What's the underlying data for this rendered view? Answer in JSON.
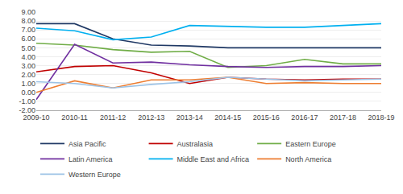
{
  "chart_data": {
    "type": "line",
    "categories": [
      "2009-10",
      "2010-11",
      "2011-12",
      "2012-13",
      "2013-14",
      "2014-15",
      "2015-16",
      "2016-17",
      "2017-18",
      "2018-19"
    ],
    "series": [
      {
        "name": "Asia Pacific",
        "color": "#1f3864",
        "values": [
          7.7,
          7.7,
          6.0,
          5.3,
          5.2,
          5.0,
          5.0,
          5.0,
          5.0,
          5.0
        ]
      },
      {
        "name": "Australasia",
        "color": "#c00000",
        "values": [
          2.3,
          2.9,
          3.0,
          2.2,
          1.0,
          1.7,
          1.5,
          1.4,
          1.5,
          1.5
        ]
      },
      {
        "name": "Eastern Europe",
        "color": "#70ad47",
        "values": [
          5.5,
          5.3,
          4.8,
          4.5,
          4.6,
          2.8,
          3.0,
          3.7,
          3.2,
          3.2
        ]
      },
      {
        "name": "Latin America",
        "color": "#7030a0",
        "values": [
          -0.8,
          5.4,
          3.3,
          3.4,
          3.1,
          2.9,
          2.8,
          2.9,
          2.9,
          3.0
        ]
      },
      {
        "name": "Middle East and Africa",
        "color": "#00b0f0",
        "values": [
          7.2,
          6.9,
          5.9,
          6.2,
          7.5,
          7.4,
          7.3,
          7.3,
          7.5,
          7.7
        ]
      },
      {
        "name": "North America",
        "color": "#ed7d31",
        "values": [
          0.0,
          1.3,
          0.5,
          1.4,
          1.4,
          1.7,
          1.0,
          1.1,
          1.0,
          1.0
        ]
      },
      {
        "name": "Western Europe",
        "color": "#9dc3e6",
        "values": [
          1.2,
          1.0,
          0.5,
          0.9,
          1.2,
          1.7,
          1.5,
          1.3,
          1.4,
          1.5
        ]
      }
    ],
    "ylim": [
      -2.0,
      9.0
    ],
    "yticks": [
      {
        "value": -2.0,
        "label": "-2.00"
      },
      {
        "value": -1.0,
        "label": "-1.00"
      },
      {
        "value": 0.0,
        "label": "0.00"
      },
      {
        "value": 1.0,
        "label": "1.00"
      },
      {
        "value": 2.0,
        "label": "2.00"
      },
      {
        "value": 3.0,
        "label": "3.00"
      },
      {
        "value": 4.0,
        "label": "4.00"
      },
      {
        "value": 5.0,
        "label": "5.00"
      },
      {
        "value": 6.0,
        "label": "6.00"
      },
      {
        "value": 7.0,
        "label": "7.00"
      },
      {
        "value": 8.0,
        "label": "8.00"
      },
      {
        "value": 9.0,
        "label": "9.00"
      }
    ],
    "grid": true,
    "legend": "bottom"
  }
}
